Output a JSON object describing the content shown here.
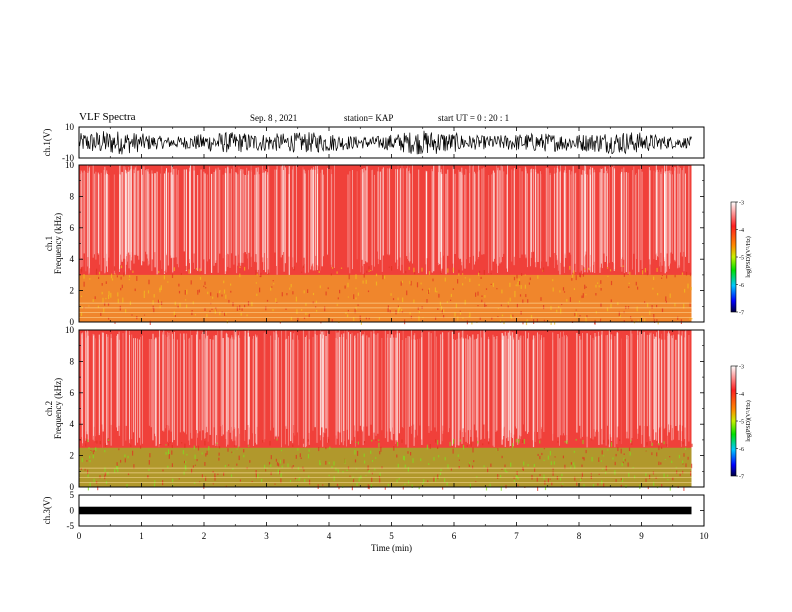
{
  "header": {
    "title": "VLF Spectra",
    "date": "Sep. 8  , 2021",
    "station": "station= KAP",
    "start_ut": "start  UT  =   0  : 20 : 1"
  },
  "colors": {
    "waveform": "#000000",
    "spectrogram_background": "#f0403a",
    "spectrogram_high_band": "#e63a2e",
    "spectrogram_low_band_ch1": "#f0c020",
    "spectrogram_low_band_ch2": "#7ee020"
  },
  "chart_data": [
    {
      "type": "line",
      "panel": "ch1-waveform",
      "ylabel": "ch.1(V)",
      "ylim": [
        -10,
        10
      ],
      "y_ticks": [
        "10",
        "-10"
      ],
      "xlim": [
        0,
        10
      ],
      "description_values": {
        "amplitude_range": [
          -8,
          8
        ]
      }
    },
    {
      "type": "heatmap",
      "panel": "ch1-spectrogram",
      "ylabel": "ch.1\nFrequency  (kHz)",
      "ylabel_line1": "ch.1",
      "ylabel_line2": "Frequency  (kHz)",
      "ylim": [
        0,
        10
      ],
      "y_ticks": [
        "0",
        "2",
        "4",
        "6",
        "8",
        "10"
      ],
      "xlim": [
        0,
        10
      ],
      "colorbar": {
        "label": "log(PSD)(V²/Hz)",
        "range": [
          -7,
          -3
        ],
        "ticks": [
          "-3",
          "-4",
          "-5",
          "-6",
          "-7"
        ]
      },
      "bands": [
        {
          "from_khz": 0,
          "to_khz": 3,
          "level": -4.2
        },
        {
          "from_khz": 3,
          "to_khz": 10,
          "level": -3.6
        }
      ]
    },
    {
      "type": "heatmap",
      "panel": "ch2-spectrogram",
      "ylabel": "ch.2\nFrequency  (kHz)",
      "ylabel_line1": "ch.2",
      "ylabel_line2": "Frequency  (kHz)",
      "ylim": [
        0,
        10
      ],
      "y_ticks": [
        "0",
        "2",
        "4",
        "6",
        "8",
        "10"
      ],
      "xlim": [
        0,
        10
      ],
      "colorbar": {
        "label": "log(PSD)(V²/Hz)",
        "range": [
          -7,
          -3
        ],
        "ticks": [
          "-3",
          "-4",
          "-5",
          "-6",
          "-7"
        ]
      },
      "bands": [
        {
          "from_khz": 0,
          "to_khz": 2.5,
          "level": -5.0
        },
        {
          "from_khz": 2.5,
          "to_khz": 10,
          "level": -3.6
        }
      ]
    },
    {
      "type": "line",
      "panel": "ch3-waveform",
      "ylabel": "ch.3(V)",
      "ylim": [
        -5,
        5
      ],
      "y_ticks": [
        "5",
        "0",
        "-5"
      ],
      "xlim": [
        0,
        10
      ],
      "description_values": {
        "amplitude_range": [
          -0.5,
          0.5
        ]
      }
    },
    {
      "type": "axis",
      "panel": "time-axis",
      "xlabel": "Time  (min)",
      "x_ticks": [
        "0",
        "1",
        "2",
        "3",
        "4",
        "5",
        "6",
        "7",
        "8",
        "9",
        "10"
      ],
      "xlim": [
        0,
        10
      ],
      "data_end": 9.8
    }
  ]
}
